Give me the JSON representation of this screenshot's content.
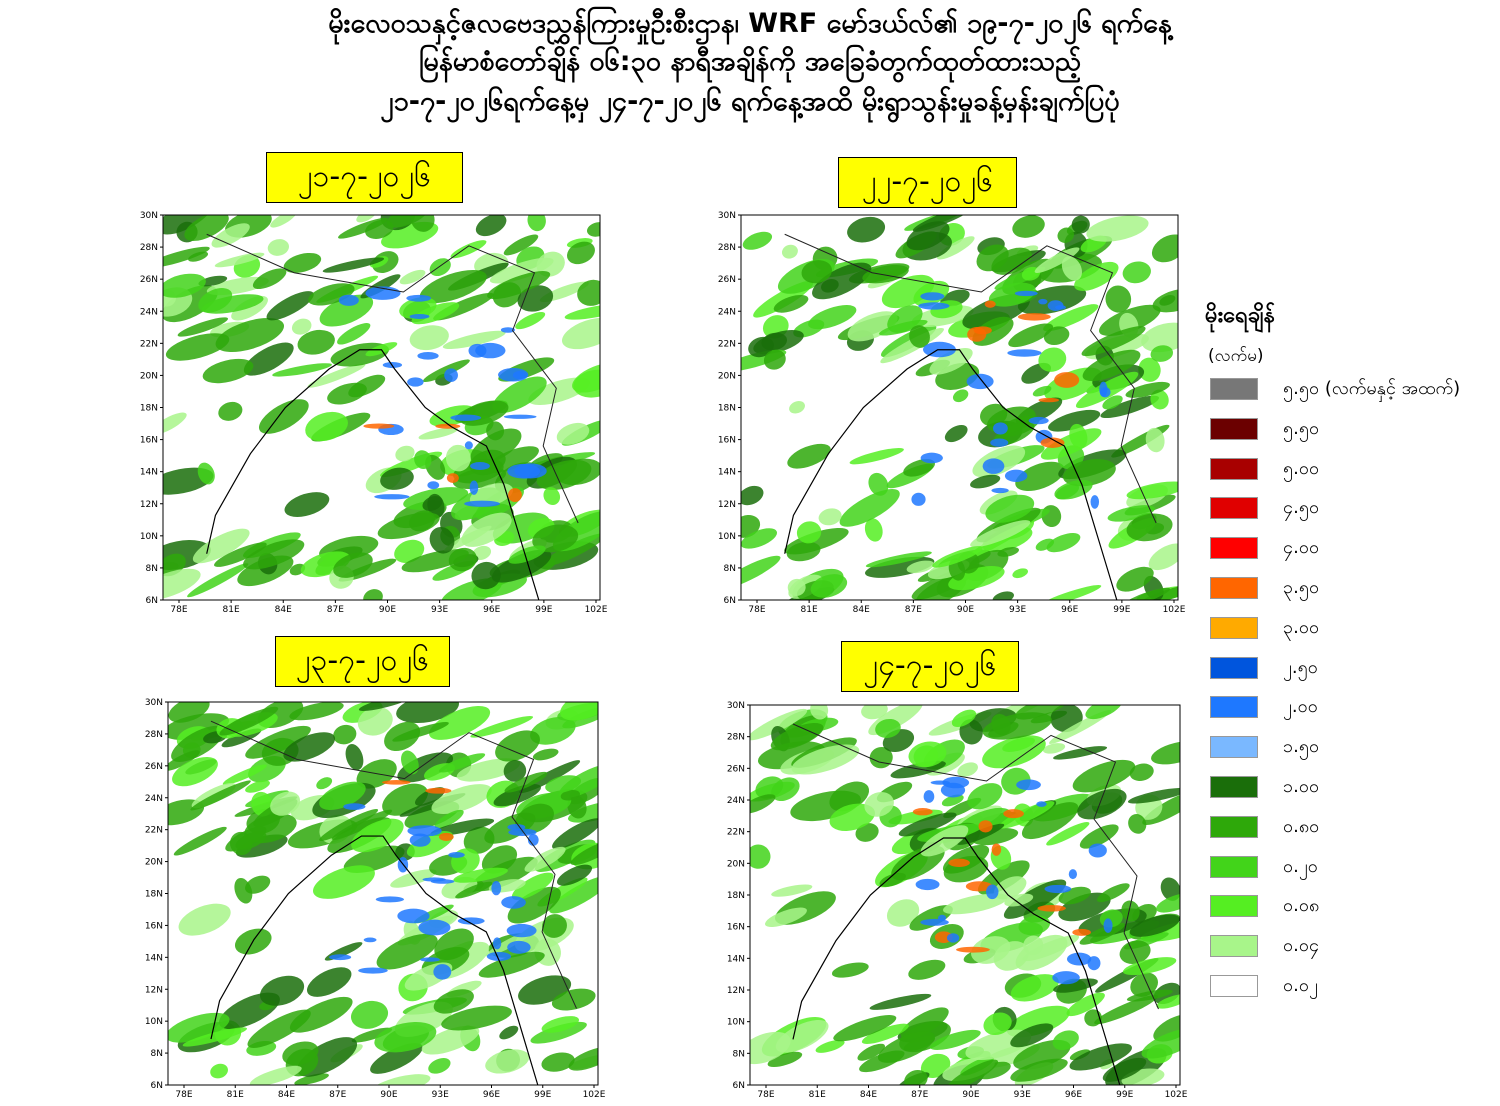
{
  "header": {
    "lines": [
      "မိုးလေဝသနှင့်ဇလဗေဒညွှန်ကြားမှုဦးစီးဌာန၊ WRF မော်ဒယ်လ်၏ ၁၉-၇-၂၀၂၆ ရက်နေ့",
      "မြန်မာစံတော်ချိန် ၀၆:၃၀ နာရီအချိန်ကို အခြေခံတွက်ထုတ်ထားသည့်",
      "၂၁-၇-၂၀၂၆ရက်နေ့မှ ၂၄-၇-၂၀၂၆ ရက်နေ့အထိ မိုးရွာသွန်းမှုခန့်မှန်းချက်ပြပုံ"
    ]
  },
  "panels": [
    {
      "date": "၂၁-၇-၂၀၂၆"
    },
    {
      "date": "၂၂-၇-၂၀၂၆"
    },
    {
      "date": "၂၃-၇-၂၀၂၆"
    },
    {
      "date": "၂၄-၇-၂၀၂၆"
    }
  ],
  "map_axes": {
    "lat_labels": [
      "30N",
      "28N",
      "26N",
      "24N",
      "22N",
      "20N",
      "18N",
      "16N",
      "14N",
      "12N",
      "10N",
      "8N",
      "6N"
    ],
    "lon_labels": [
      "78E",
      "81E",
      "84E",
      "87E",
      "90E",
      "93E",
      "96E",
      "99E",
      "102E"
    ]
  },
  "legend": {
    "title": "မိုးရေချိန်",
    "unit": "(လက်မ)",
    "items": [
      {
        "label": "၅.၅၀ (လက်မနှင့် အထက်)",
        "color": "#777777"
      },
      {
        "label": "၅.၅၀",
        "color": "#6b0000"
      },
      {
        "label": "၅.၀၀",
        "color": "#a80000"
      },
      {
        "label": "၄.၅၀",
        "color": "#e00000"
      },
      {
        "label": "၄.၀၀",
        "color": "#ff0000"
      },
      {
        "label": "၃.၅၀",
        "color": "#ff6600"
      },
      {
        "label": "၃.၀၀",
        "color": "#ffaa00"
      },
      {
        "label": "၂.၅၀",
        "color": "#0055dd"
      },
      {
        "label": "၂.၀၀",
        "color": "#1e78ff"
      },
      {
        "label": "၁.၅၀",
        "color": "#7ab8ff"
      },
      {
        "label": "၁.၀၀",
        "color": "#1a6e0a"
      },
      {
        "label": "၀.၈၀",
        "color": "#2ea80a"
      },
      {
        "label": "၀.၂၀",
        "color": "#42d41a"
      },
      {
        "label": "၀.၀၈",
        "color": "#55ee22"
      },
      {
        "label": "၀.၀၄",
        "color": "#a8f58a"
      },
      {
        "label": "၀.၀၂",
        "color": "#ffffff"
      }
    ]
  }
}
